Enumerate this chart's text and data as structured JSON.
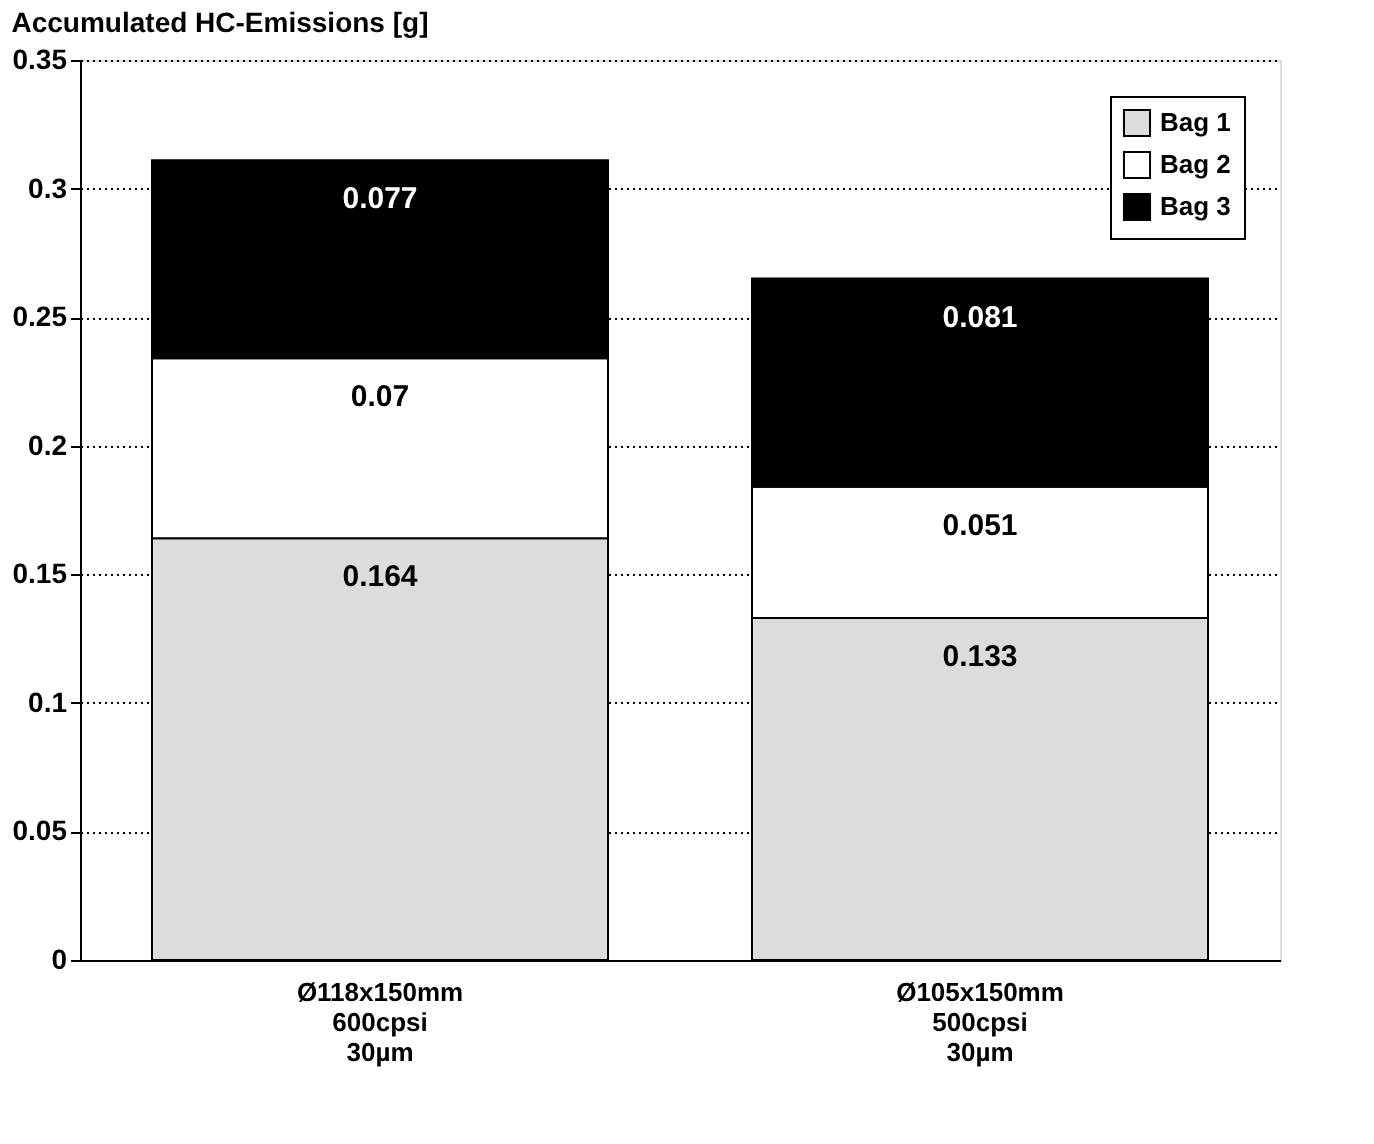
{
  "chart_data": {
    "type": "bar",
    "title": "Accumulated HC-Emissions [g]",
    "categories": [
      "Ø118x150mm\n600cpsi\n30µm",
      "Ø105x150mm\n500cpsi\n30µm"
    ],
    "stacked": true,
    "series": [
      {
        "name": "Bag 1",
        "color": "#dcdcdc",
        "values": [
          0.164,
          0.133
        ]
      },
      {
        "name": "Bag 2",
        "color": "#ffffff",
        "values": [
          0.07,
          0.051
        ]
      },
      {
        "name": "Bag 3",
        "color": "#000000",
        "values": [
          0.077,
          0.081
        ]
      }
    ],
    "ylim": [
      0,
      0.35
    ],
    "yticks": [
      0,
      0.05,
      0.1,
      0.15,
      0.2,
      0.25,
      0.3,
      0.35
    ],
    "grid": "y",
    "legend": "top right",
    "data_labels": true
  }
}
